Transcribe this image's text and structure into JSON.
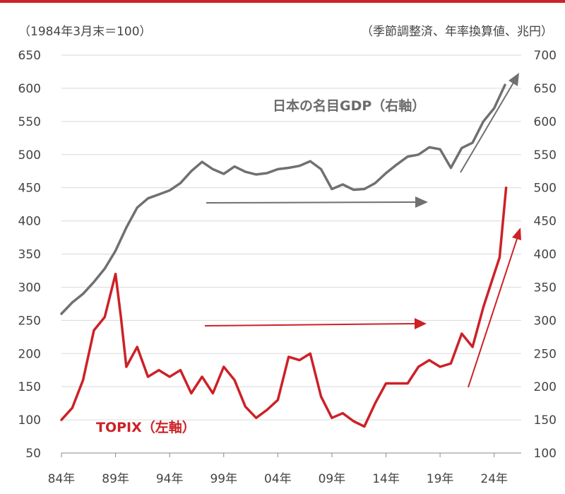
{
  "chart_data": {
    "type": "line",
    "note_left": "（1984年3月末＝100）",
    "note_right": "（季節調整済、年率換算値、兆円）",
    "x_ticks": [
      "84年",
      "89年",
      "94年",
      "99年",
      "04年",
      "09年",
      "14年",
      "19年",
      "24年"
    ],
    "y_left_ticks": [
      "650",
      "600",
      "550",
      "500",
      "450",
      "400",
      "350",
      "300",
      "250",
      "200",
      "150",
      "100",
      "50"
    ],
    "y_right_ticks": [
      "700",
      "650",
      "600",
      "550",
      "500",
      "450",
      "400",
      "350",
      "300",
      "250",
      "200",
      "150",
      "100"
    ],
    "ylim_left": [
      50,
      650
    ],
    "ylim_right": [
      100,
      700
    ],
    "grid": true,
    "colors": {
      "gdp": "#707070",
      "topix": "#cc2127",
      "top_rule": "#cc2127",
      "grid": "#d9d9d9"
    },
    "series": [
      {
        "key": "gdp",
        "axis": "right",
        "name": "日本の名目GDP（右軸）",
        "x": [
          1984,
          1985,
          1986,
          1987,
          1988,
          1989,
          1990,
          1991,
          1992,
          1993,
          1994,
          1995,
          1996,
          1997,
          1998,
          1999,
          2000,
          2001,
          2002,
          2003,
          2004,
          2005,
          2006,
          2007,
          2008,
          2009,
          2010,
          2011,
          2012,
          2013,
          2014,
          2015,
          2016,
          2017,
          2018,
          2019,
          2020,
          2021,
          2022,
          2023,
          2024,
          2025
        ],
        "values": [
          310,
          327,
          340,
          358,
          378,
          405,
          440,
          470,
          484,
          490,
          496,
          507,
          525,
          539,
          528,
          521,
          532,
          524,
          520,
          522,
          528,
          530,
          533,
          540,
          528,
          498,
          505,
          497,
          498,
          507,
          522,
          535,
          547,
          550,
          561,
          558,
          530,
          560,
          568,
          600,
          620,
          655
        ]
      },
      {
        "key": "topix",
        "axis": "left",
        "name": "TOPIX（左軸）",
        "x": [
          1984,
          1985,
          1986,
          1987,
          1988,
          1989,
          1989.5,
          1990,
          1991,
          1992,
          1993,
          1994,
          1995,
          1996,
          1997,
          1998,
          1999,
          2000,
          2001,
          2002,
          2003,
          2004,
          2005,
          2006,
          2007,
          2008,
          2009,
          2010,
          2011,
          2012,
          2013,
          2014,
          2015,
          2016,
          2017,
          2018,
          2019,
          2020,
          2021,
          2022,
          2023,
          2024,
          2024.5,
          2025.1
        ],
        "values": [
          100,
          118,
          160,
          235,
          255,
          320,
          255,
          180,
          210,
          165,
          175,
          165,
          175,
          140,
          165,
          140,
          180,
          160,
          120,
          103,
          115,
          130,
          195,
          190,
          200,
          135,
          103,
          110,
          98,
          90,
          125,
          155,
          155,
          155,
          180,
          190,
          180,
          185,
          230,
          210,
          270,
          320,
          345,
          450
        ]
      }
    ],
    "annotations": {
      "gdp_label": "日本の名目GDP（右軸）",
      "topix_label": "TOPIX（左軸）"
    }
  }
}
